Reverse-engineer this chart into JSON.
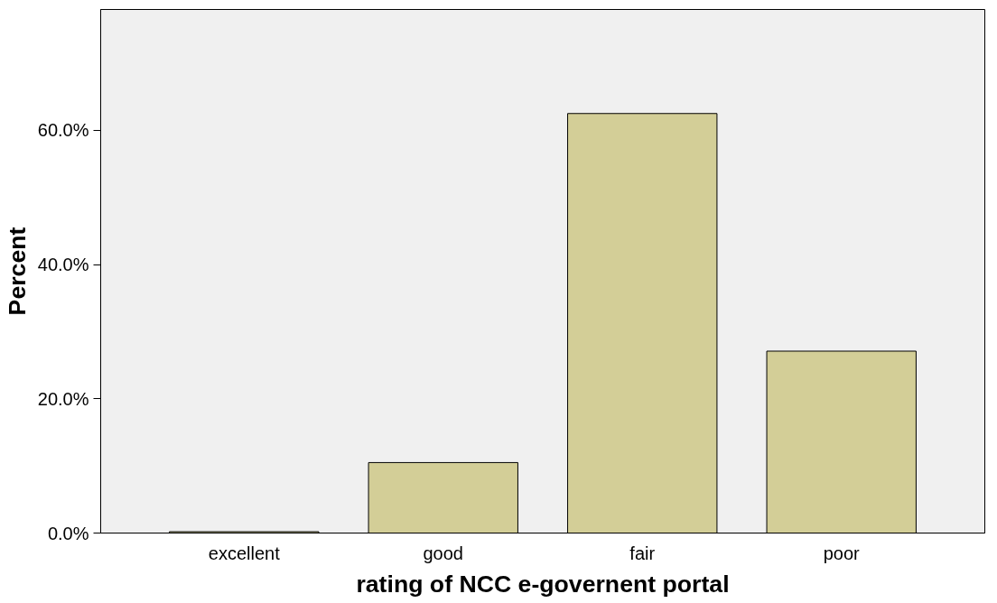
{
  "chart_data": {
    "type": "bar",
    "xlabel": "rating of NCC e-governent portal",
    "ylabel": "Percent",
    "categories": [
      "excellent",
      "good",
      "fair",
      "poor"
    ],
    "values": [
      0.2,
      10.5,
      62.5,
      27.1
    ],
    "color": "#d3ce97",
    "ylim": [
      0,
      78
    ],
    "yticks": [
      {
        "value": 0,
        "label": "0.0%"
      },
      {
        "value": 20,
        "label": "20.0%"
      },
      {
        "value": 40,
        "label": "40.0%"
      },
      {
        "value": 60,
        "label": "60.0%"
      }
    ],
    "grid": false
  }
}
